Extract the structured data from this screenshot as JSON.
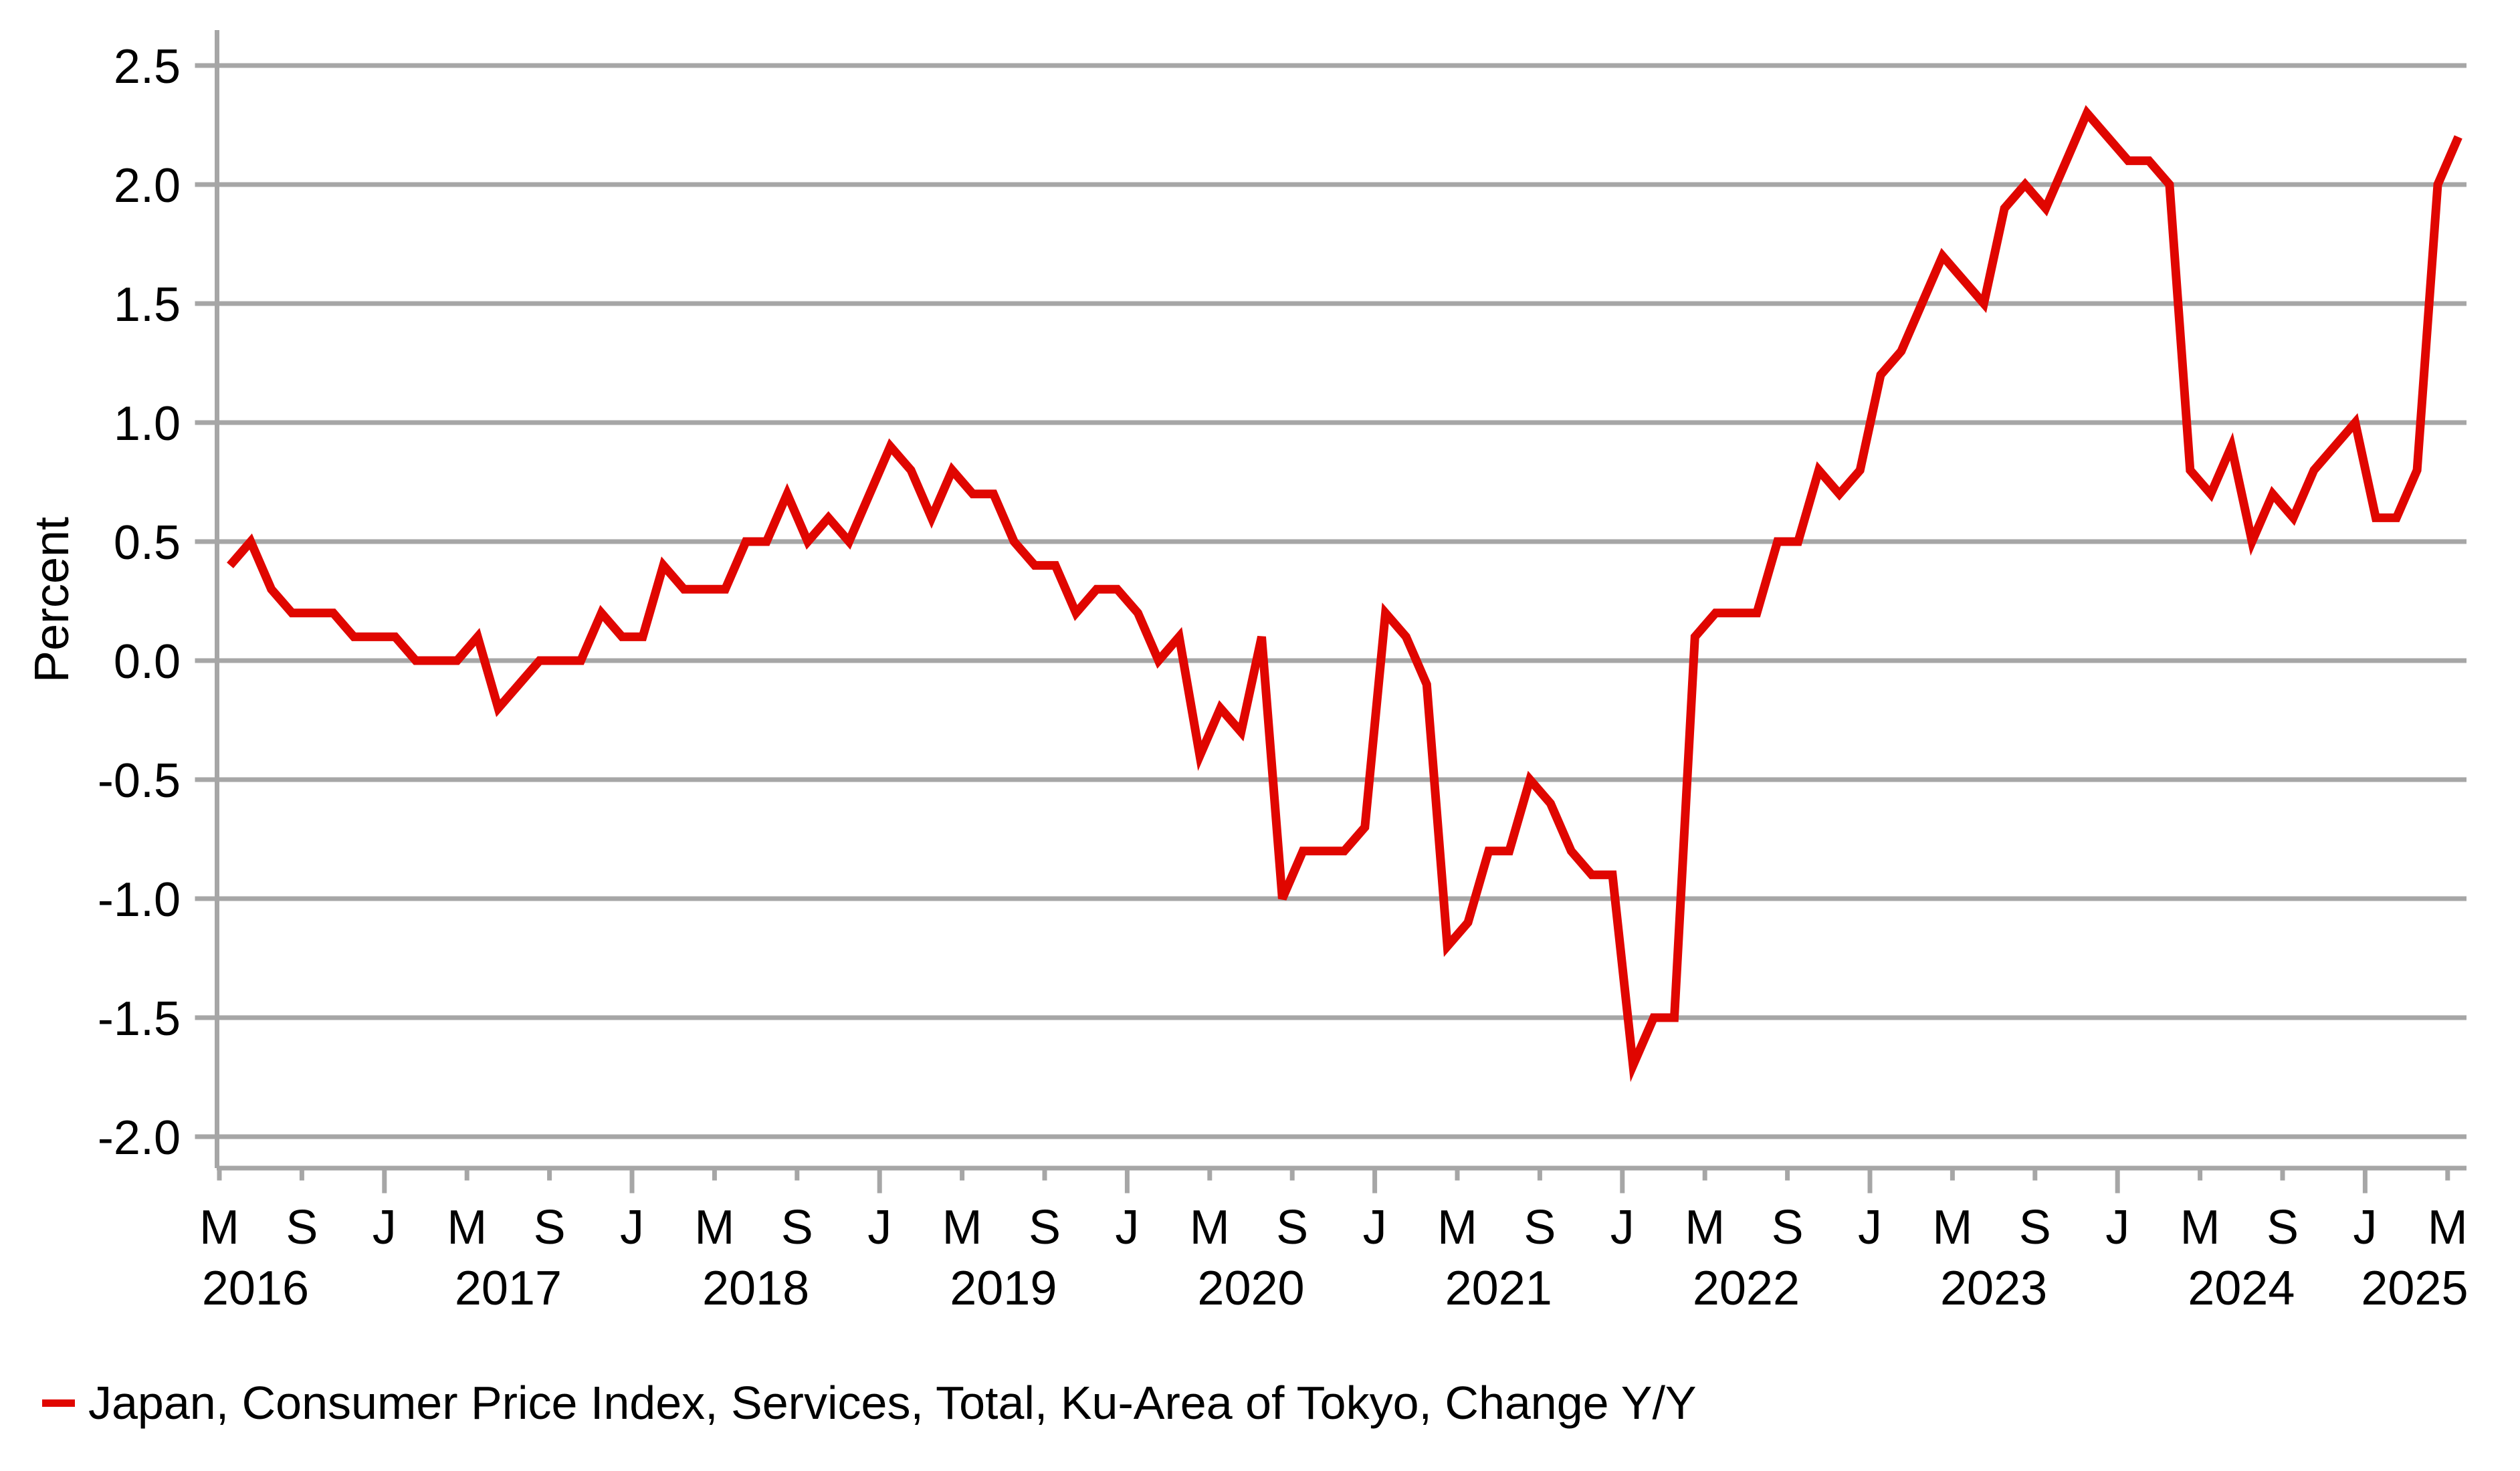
{
  "chart_data": {
    "type": "line",
    "title": "",
    "ylabel": "Percent",
    "legend_label": "Japan, Consumer Price Index, Services, Total, Ku-Area of Tokyo, Change Y/Y",
    "line_color": "#e00600",
    "grid_color": "#a6a6a6",
    "text_color": "#000000",
    "ylim": [
      -2.0,
      2.5
    ],
    "grid": true,
    "legend_position": "bottom-left",
    "yticks": [
      "2.5",
      "2.0",
      "1.5",
      "1.0",
      "0.5",
      "0.0",
      "-0.5",
      "-1.0",
      "-1.5",
      "-2.0"
    ],
    "x_start": "2016-05",
    "x_freq": "monthly",
    "months": [
      "2016-05",
      "2016-06",
      "2016-07",
      "2016-08",
      "2016-09",
      "2016-10",
      "2016-11",
      "2016-12",
      "2017-01",
      "2017-02",
      "2017-03",
      "2017-04",
      "2017-05",
      "2017-06",
      "2017-07",
      "2017-08",
      "2017-09",
      "2017-10",
      "2017-11",
      "2017-12",
      "2018-01",
      "2018-02",
      "2018-03",
      "2018-04",
      "2018-05",
      "2018-06",
      "2018-07",
      "2018-08",
      "2018-09",
      "2018-10",
      "2018-11",
      "2018-12",
      "2019-01",
      "2019-02",
      "2019-03",
      "2019-04",
      "2019-05",
      "2019-06",
      "2019-07",
      "2019-08",
      "2019-09",
      "2019-10",
      "2019-11",
      "2019-12",
      "2020-01",
      "2020-02",
      "2020-03",
      "2020-04",
      "2020-05",
      "2020-06",
      "2020-07",
      "2020-08",
      "2020-09",
      "2020-10",
      "2020-11",
      "2020-12",
      "2021-01",
      "2021-02",
      "2021-03",
      "2021-04",
      "2021-05",
      "2021-06",
      "2021-07",
      "2021-08",
      "2021-09",
      "2021-10",
      "2021-11",
      "2021-12",
      "2022-01",
      "2022-02",
      "2022-03",
      "2022-04",
      "2022-05",
      "2022-06",
      "2022-07",
      "2022-08",
      "2022-09",
      "2022-10",
      "2022-11",
      "2022-12",
      "2023-01",
      "2023-02",
      "2023-03",
      "2023-04",
      "2023-05",
      "2023-06",
      "2023-07",
      "2023-08",
      "2023-09",
      "2023-10",
      "2023-11",
      "2023-12",
      "2024-01",
      "2024-02",
      "2024-03",
      "2024-04",
      "2024-05",
      "2024-06",
      "2024-07",
      "2024-08",
      "2024-09",
      "2024-10",
      "2024-11",
      "2024-12",
      "2025-01",
      "2025-02",
      "2025-03",
      "2025-04",
      "2025-05"
    ],
    "values": [
      0.4,
      0.5,
      0.3,
      0.2,
      0.2,
      0.2,
      0.1,
      0.1,
      0.1,
      0.0,
      0.0,
      0.0,
      0.1,
      -0.2,
      -0.1,
      0.0,
      0.0,
      0.0,
      0.2,
      0.1,
      0.1,
      0.4,
      0.3,
      0.3,
      0.3,
      0.5,
      0.5,
      0.7,
      0.5,
      0.6,
      0.5,
      0.7,
      0.9,
      0.8,
      0.6,
      0.8,
      0.7,
      0.7,
      0.5,
      0.4,
      0.4,
      0.2,
      0.3,
      0.3,
      0.2,
      0.0,
      0.1,
      -0.4,
      -0.2,
      -0.3,
      0.1,
      -1.0,
      -0.8,
      -0.8,
      -0.8,
      -0.7,
      0.2,
      0.1,
      -0.1,
      -1.2,
      -1.1,
      -0.8,
      -0.8,
      -0.5,
      -0.6,
      -0.8,
      -0.9,
      -0.9,
      -1.7,
      -1.5,
      -1.5,
      0.1,
      0.2,
      0.2,
      0.2,
      0.5,
      0.5,
      0.8,
      0.7,
      0.8,
      1.2,
      1.3,
      1.5,
      1.7,
      1.6,
      1.5,
      1.9,
      2.0,
      1.9,
      2.1,
      2.3,
      2.2,
      2.1,
      2.1,
      2.0,
      0.8,
      0.7,
      0.9,
      0.5,
      0.7,
      0.6,
      0.8,
      0.9,
      1.0,
      0.6,
      0.6,
      0.8,
      2.0,
      2.2
    ],
    "xticks": [
      {
        "m": 0,
        "label": "M"
      },
      {
        "m": 4,
        "label": "S"
      },
      {
        "m": 8,
        "label": "J",
        "major": true
      },
      {
        "m": 12,
        "label": "M"
      },
      {
        "m": 16,
        "label": "S"
      },
      {
        "m": 20,
        "label": "J",
        "major": true
      },
      {
        "m": 24,
        "label": "M"
      },
      {
        "m": 28,
        "label": "S"
      },
      {
        "m": 32,
        "label": "J",
        "major": true
      },
      {
        "m": 36,
        "label": "M"
      },
      {
        "m": 40,
        "label": "S"
      },
      {
        "m": 44,
        "label": "J",
        "major": true
      },
      {
        "m": 48,
        "label": "M"
      },
      {
        "m": 52,
        "label": "S"
      },
      {
        "m": 56,
        "label": "J",
        "major": true
      },
      {
        "m": 60,
        "label": "M"
      },
      {
        "m": 64,
        "label": "S"
      },
      {
        "m": 68,
        "label": "J",
        "major": true
      },
      {
        "m": 72,
        "label": "M"
      },
      {
        "m": 76,
        "label": "S"
      },
      {
        "m": 80,
        "label": "J",
        "major": true
      },
      {
        "m": 84,
        "label": "M"
      },
      {
        "m": 88,
        "label": "S"
      },
      {
        "m": 92,
        "label": "J",
        "major": true
      },
      {
        "m": 96,
        "label": "M"
      },
      {
        "m": 100,
        "label": "S"
      },
      {
        "m": 104,
        "label": "J",
        "major": true
      },
      {
        "m": 108,
        "label": "M"
      }
    ],
    "year_labels": [
      {
        "text": "2016",
        "m": 1.75
      },
      {
        "text": "2017",
        "m": 14
      },
      {
        "text": "2018",
        "m": 26
      },
      {
        "text": "2019",
        "m": 38
      },
      {
        "text": "2020",
        "m": 50
      },
      {
        "text": "2021",
        "m": 62
      },
      {
        "text": "2022",
        "m": 74
      },
      {
        "text": "2023",
        "m": 86
      },
      {
        "text": "2024",
        "m": 98
      },
      {
        "text": "2025",
        "m": 106.4
      }
    ]
  }
}
